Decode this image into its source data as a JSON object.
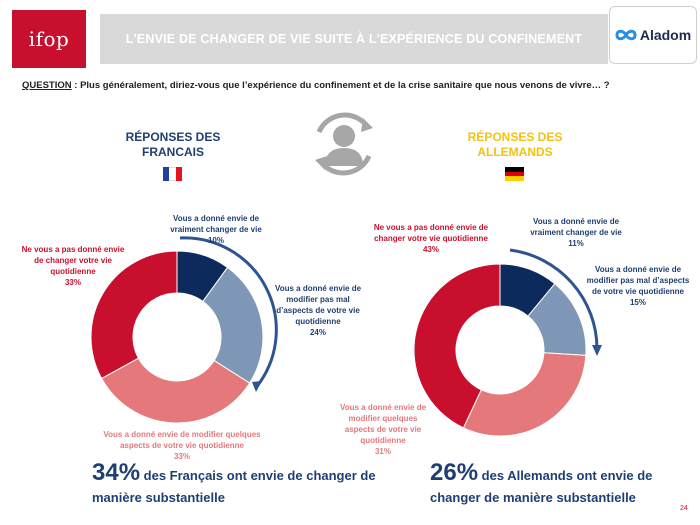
{
  "header": {
    "logo_text": "ifop",
    "title": "L'ENVIE DE CHANGER DE VIE SUITE À L'EXPÉRIENCE DU CONFINEMENT",
    "partner_logo_text": "Aladom"
  },
  "question": {
    "label": "QUESTION",
    "text": " :  Plus généralement, diriez-vous que l’expérience du confinement et de la crise sanitaire que nous venons de vivre… ?"
  },
  "colors": {
    "navy": "#0c2a5b",
    "steel": "#7f97b6",
    "pink": "#e5787a",
    "red": "#c8102e",
    "fr_title": "#1f3f73",
    "de_title": "#f4c20d",
    "arrow": "#2e5590"
  },
  "icon": "person-refresh-icon",
  "chart_data": [
    {
      "type": "donut",
      "title": "RÉPONSES DES FRANCAIS",
      "flag": "france-flag",
      "categories": [
        "Vous a donné envie de vraiment changer de vie",
        "Vous a donné envie de modifier pas mal d’aspects de votre vie quotidienne",
        "Vous a donné envie de modifier quelques aspects de votre vie quotidienne",
        "Ne vous a pas donné envie de changer votre vie quotidienne"
      ],
      "values": [
        10,
        24,
        33,
        33
      ],
      "labels": [
        "10%",
        "24%",
        "33%",
        "33%"
      ],
      "colors": [
        "#0c2a5b",
        "#7f97b6",
        "#e5787a",
        "#c8102e"
      ]
    },
    {
      "type": "donut",
      "title": "RÉPONSES DES ALLEMANDS",
      "flag": "germany-flag",
      "categories": [
        "Vous a donné envie de vraiment changer de vie",
        "Vous a donné envie de modifier pas mal d’aspects de votre vie quotidienne",
        "Vous a donné envie de modifier quelques aspects de votre vie quotidienne",
        "Ne vous a pas donné envie de changer votre vie quotidienne"
      ],
      "values": [
        11,
        15,
        31,
        43
      ],
      "labels": [
        "11%",
        "15%",
        "31%",
        "43%"
      ],
      "colors": [
        "#0c2a5b",
        "#7f97b6",
        "#e5787a",
        "#c8102e"
      ]
    }
  ],
  "france": {
    "title_line1": "RÉPONSES DES",
    "title_line2": "FRANCAIS",
    "lbl_vraiment": "Vous a donné envie de vraiment changer de vie",
    "pct_vraiment": "10%",
    "lbl_pasmal": "Vous a donné envie de modifier pas mal d’aspects de votre vie quotidienne",
    "pct_pasmal": "24%",
    "lbl_quelques": "Vous a donné envie de modifier quelques aspects de votre vie quotidienne",
    "pct_quelques": "33%",
    "lbl_pas": "Ne vous a pas donné envie de changer votre vie quotidienne",
    "pct_pas": "33%",
    "summary_num": "34%",
    "summary_text": " des Français ont envie de changer de manière substantielle"
  },
  "germany": {
    "title_line1": "RÉPONSES DES",
    "title_line2": "ALLEMANDS",
    "lbl_vraiment": "Vous a donné envie de vraiment changer de vie",
    "pct_vraiment": "11%",
    "lbl_pasmal": "Vous a donné envie de modifier pas mal d’aspects de votre vie quotidienne",
    "pct_pasmal": "15%",
    "lbl_quelques": "Vous a donné envie de modifier quelques aspects de votre vie quotidienne",
    "pct_quelques": "31%",
    "lbl_pas": "Ne vous a pas donné envie de changer votre vie quotidienne",
    "pct_pas": "43%",
    "summary_num": "26%",
    "summary_text": " des Allemands ont envie de changer de manière substantielle"
  },
  "page_number": "24"
}
